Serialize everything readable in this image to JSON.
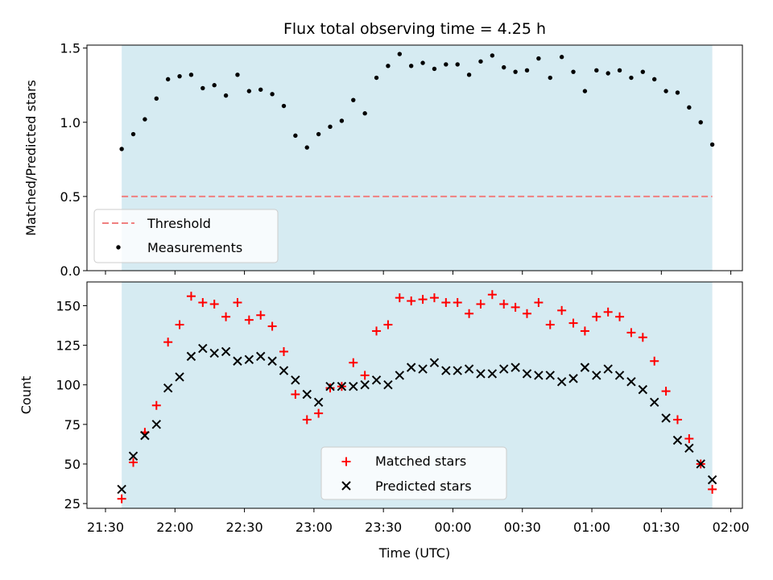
{
  "chart_data": [
    {
      "type": "scatter",
      "title": "Flux total observing time = 4.25 h",
      "ylabel": "Matched/Predicted stars",
      "xlabel": "",
      "ylim": [
        0,
        1.52
      ],
      "xlim": [
        "21:22",
        "02:05"
      ],
      "yticks": [
        "0.0",
        "0.5",
        "1.0",
        "1.5"
      ],
      "yticks_values": [
        0,
        0.5,
        1.0,
        1.5
      ],
      "shaded_span": [
        "21:37",
        "01:52"
      ],
      "shade_color": "#add8e6",
      "legend_position": "lower left",
      "threshold": {
        "name": "Threshold",
        "value": 0.5,
        "color": "#f08080"
      },
      "series": [
        {
          "name": "Measurements",
          "color": "#000000",
          "x": [
            "21:37",
            "21:42",
            "21:47",
            "21:52",
            "21:57",
            "22:02",
            "22:07",
            "22:12",
            "22:17",
            "22:22",
            "22:27",
            "22:32",
            "22:37",
            "22:42",
            "22:47",
            "22:52",
            "22:57",
            "23:02",
            "23:07",
            "23:12",
            "23:17",
            "23:22",
            "23:27",
            "23:32",
            "23:37",
            "23:42",
            "23:47",
            "23:52",
            "23:57",
            "00:02",
            "00:07",
            "00:12",
            "00:17",
            "00:22",
            "00:27",
            "00:32",
            "00:37",
            "00:42",
            "00:47",
            "00:52",
            "00:57",
            "01:02",
            "01:07",
            "01:12",
            "01:17",
            "01:22",
            "01:27",
            "01:32",
            "01:37",
            "01:42",
            "01:47",
            "01:52"
          ],
          "y": [
            0.82,
            0.92,
            1.02,
            1.16,
            1.29,
            1.31,
            1.32,
            1.23,
            1.25,
            1.18,
            1.32,
            1.21,
            1.22,
            1.19,
            1.11,
            0.91,
            0.83,
            0.92,
            0.97,
            1.01,
            1.15,
            1.06,
            1.3,
            1.38,
            1.46,
            1.38,
            1.4,
            1.36,
            1.39,
            1.39,
            1.32,
            1.41,
            1.45,
            1.37,
            1.34,
            1.35,
            1.43,
            1.3,
            1.44,
            1.34,
            1.21,
            1.35,
            1.33,
            1.35,
            1.3,
            1.34,
            1.29,
            1.21,
            1.2,
            1.1,
            1.0,
            0.85
          ]
        }
      ]
    },
    {
      "type": "scatter",
      "title": "",
      "ylabel": "Count",
      "xlabel": "Time (UTC)",
      "ylim": [
        22,
        165
      ],
      "xlim": [
        "21:22",
        "02:05"
      ],
      "yticks": [
        "25",
        "50",
        "75",
        "100",
        "125",
        "150"
      ],
      "yticks_values": [
        25,
        50,
        75,
        100,
        125,
        150
      ],
      "xticks": [
        "21:30",
        "22:00",
        "22:30",
        "23:00",
        "23:30",
        "00:00",
        "00:30",
        "01:00",
        "01:30",
        "02:00"
      ],
      "xticks_times": [
        "21:30",
        "22:00",
        "22:30",
        "23:00",
        "23:30",
        "00:00",
        "00:30",
        "01:00",
        "01:30",
        "02:00"
      ],
      "shaded_span": [
        "21:37",
        "01:52"
      ],
      "shade_color": "#add8e6",
      "legend_position": "lower center",
      "series": [
        {
          "name": "Matched stars",
          "marker": "plus",
          "color": "#ff0000",
          "x": [
            "21:37",
            "21:42",
            "21:47",
            "21:52",
            "21:57",
            "22:02",
            "22:07",
            "22:12",
            "22:17",
            "22:22",
            "22:27",
            "22:32",
            "22:37",
            "22:42",
            "22:47",
            "22:52",
            "22:57",
            "23:02",
            "23:07",
            "23:12",
            "23:17",
            "23:22",
            "23:27",
            "23:32",
            "23:37",
            "23:42",
            "23:47",
            "23:52",
            "23:57",
            "00:02",
            "00:07",
            "00:12",
            "00:17",
            "00:22",
            "00:27",
            "00:32",
            "00:37",
            "00:42",
            "00:47",
            "00:52",
            "00:57",
            "01:02",
            "01:07",
            "01:12",
            "01:17",
            "01:22",
            "01:27",
            "01:32",
            "01:37",
            "01:42",
            "01:47",
            "01:52"
          ],
          "y": [
            28,
            51,
            70,
            87,
            127,
            138,
            156,
            152,
            151,
            143,
            152,
            141,
            144,
            137,
            121,
            94,
            78,
            82,
            98,
            99,
            114,
            106,
            134,
            138,
            155,
            153,
            154,
            155,
            152,
            152,
            145,
            151,
            157,
            151,
            149,
            145,
            152,
            138,
            147,
            139,
            134,
            143,
            146,
            143,
            133,
            130,
            115,
            96,
            78,
            66,
            50,
            34
          ]
        },
        {
          "name": "Predicted stars",
          "marker": "x",
          "color": "#000000",
          "x": [
            "21:37",
            "21:42",
            "21:47",
            "21:52",
            "21:57",
            "22:02",
            "22:07",
            "22:12",
            "22:17",
            "22:22",
            "22:27",
            "22:32",
            "22:37",
            "22:42",
            "22:47",
            "22:52",
            "22:57",
            "23:02",
            "23:07",
            "23:12",
            "23:17",
            "23:22",
            "23:27",
            "23:32",
            "23:37",
            "23:42",
            "23:47",
            "23:52",
            "23:57",
            "00:02",
            "00:07",
            "00:12",
            "00:17",
            "00:22",
            "00:27",
            "00:32",
            "00:37",
            "00:42",
            "00:47",
            "00:52",
            "00:57",
            "01:02",
            "01:07",
            "01:12",
            "01:17",
            "01:22",
            "01:27",
            "01:32",
            "01:37",
            "01:42",
            "01:47",
            "01:52"
          ],
          "y": [
            34,
            55,
            68,
            75,
            98,
            105,
            118,
            123,
            120,
            121,
            115,
            116,
            118,
            115,
            109,
            103,
            94,
            89,
            99,
            99,
            99,
            100,
            103,
            100,
            106,
            111,
            110,
            114,
            109,
            109,
            110,
            107,
            107,
            110,
            111,
            107,
            106,
            106,
            102,
            104,
            111,
            106,
            110,
            106,
            102,
            97,
            89,
            79,
            65,
            60,
            50,
            40
          ]
        }
      ]
    }
  ]
}
